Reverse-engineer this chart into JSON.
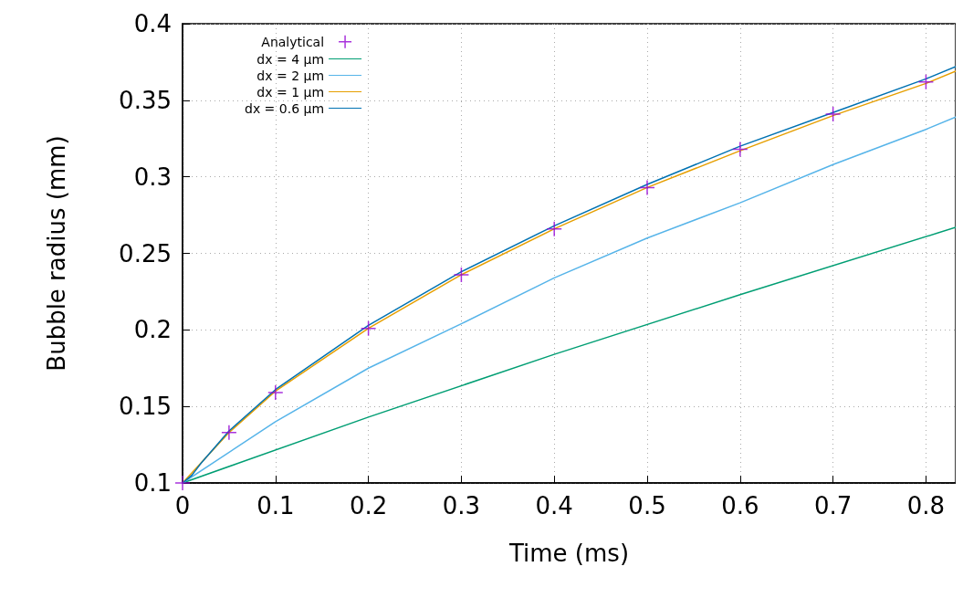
{
  "chart_data": {
    "type": "line",
    "xlabel": "Time (ms)",
    "ylabel": "Bubble radius (mm)",
    "xlim": [
      0,
      0.832
    ],
    "ylim": [
      0.1,
      0.4
    ],
    "xticks": [
      0,
      0.1,
      0.2,
      0.3,
      0.4,
      0.5,
      0.6,
      0.7,
      0.8
    ],
    "yticks": [
      0.1,
      0.15,
      0.2,
      0.25,
      0.3,
      0.35,
      0.4
    ],
    "grid": true,
    "legend": "top left",
    "marker": "none",
    "line_style": "solid",
    "series": [
      {
        "name": "Analytical",
        "type": "scatter",
        "marker": "cross",
        "color": "#9400d3",
        "x": [
          0,
          0.05,
          0.1,
          0.2,
          0.3,
          0.4,
          0.5,
          0.6,
          0.7,
          0.8
        ],
        "values": [
          0.1,
          0.133,
          0.159,
          0.201,
          0.236,
          0.266,
          0.293,
          0.318,
          0.341,
          0.362
        ]
      },
      {
        "name": "dx = 4 µm",
        "color": "#009e73",
        "x": [
          0,
          0.2,
          0.4,
          0.6,
          0.832
        ],
        "values": [
          0.1,
          0.143,
          0.184,
          0.223,
          0.267
        ]
      },
      {
        "name": "dx = 2 µm",
        "color": "#56b4e9",
        "x": [
          0,
          0.1,
          0.2,
          0.3,
          0.4,
          0.5,
          0.6,
          0.7,
          0.8,
          0.832
        ],
        "values": [
          0.1,
          0.14,
          0.175,
          0.204,
          0.234,
          0.26,
          0.283,
          0.308,
          0.331,
          0.339
        ]
      },
      {
        "name": "dx = 1 µm",
        "color": "#e69f00",
        "x": [
          0,
          0.05,
          0.1,
          0.2,
          0.3,
          0.4,
          0.5,
          0.6,
          0.7,
          0.8,
          0.832
        ],
        "values": [
          0.1,
          0.133,
          0.16,
          0.201,
          0.236,
          0.266,
          0.293,
          0.317,
          0.34,
          0.361,
          0.369
        ]
      },
      {
        "name": "dx = 0.6 µm",
        "color": "#0072b2",
        "x": [
          0,
          0.01,
          0.02,
          0.05,
          0.1,
          0.2,
          0.3,
          0.4,
          0.5,
          0.6,
          0.7,
          0.8,
          0.832
        ],
        "values": [
          0.1,
          0.105,
          0.113,
          0.134,
          0.161,
          0.203,
          0.238,
          0.268,
          0.295,
          0.32,
          0.342,
          0.364,
          0.372
        ]
      }
    ]
  }
}
